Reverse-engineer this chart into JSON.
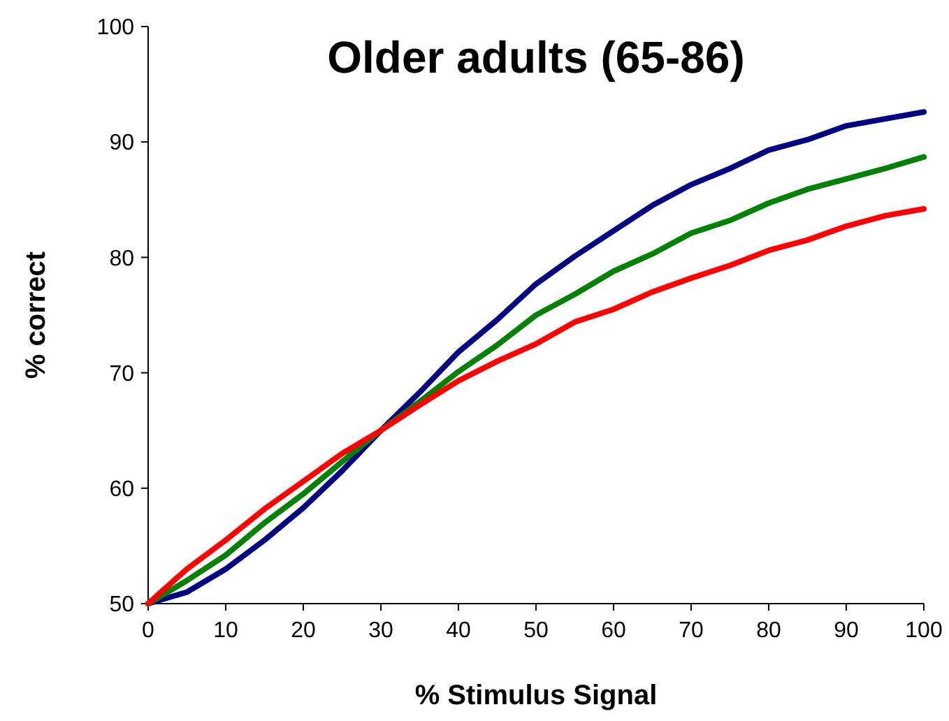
{
  "chart_data": {
    "type": "line",
    "title": "Older adults (65-86)",
    "xlabel": "% Stimulus Signal",
    "ylabel": "% correct",
    "x": [
      0,
      5,
      10,
      15,
      20,
      25,
      30,
      35,
      40,
      45,
      50,
      55,
      60,
      65,
      70,
      75,
      80,
      85,
      90,
      95,
      100
    ],
    "series": [
      {
        "color": "#000080",
        "values": [
          50,
          51,
          53,
          55.5,
          58.3,
          61.5,
          65,
          68.3,
          71.8,
          74.6,
          77.7,
          80.1,
          82.3,
          84.5,
          86.3,
          87.7,
          89.3,
          90.2,
          91.4,
          92,
          92.6
        ]
      },
      {
        "color": "#008000",
        "values": [
          50,
          52,
          54.2,
          57,
          59.5,
          62.3,
          65,
          67.5,
          70.1,
          72.4,
          75,
          76.8,
          78.8,
          80.3,
          82.1,
          83.2,
          84.7,
          85.9,
          86.8,
          87.7,
          88.7
        ]
      },
      {
        "color": "#ff0000",
        "values": [
          50,
          53,
          55.5,
          58.2,
          60.6,
          63,
          65,
          67.2,
          69.3,
          71,
          72.5,
          74.4,
          75.5,
          77,
          78.2,
          79.3,
          80.6,
          81.5,
          82.7,
          83.6,
          84.2
        ]
      }
    ],
    "xlim": [
      0,
      100
    ],
    "xticks": [
      0,
      10,
      20,
      30,
      40,
      50,
      60,
      70,
      80,
      90,
      100
    ],
    "ylim": [
      50,
      100
    ],
    "yticks": [
      50,
      60,
      70,
      80,
      90,
      100
    ],
    "grid": false,
    "marker": "none",
    "line_style": "solid"
  }
}
